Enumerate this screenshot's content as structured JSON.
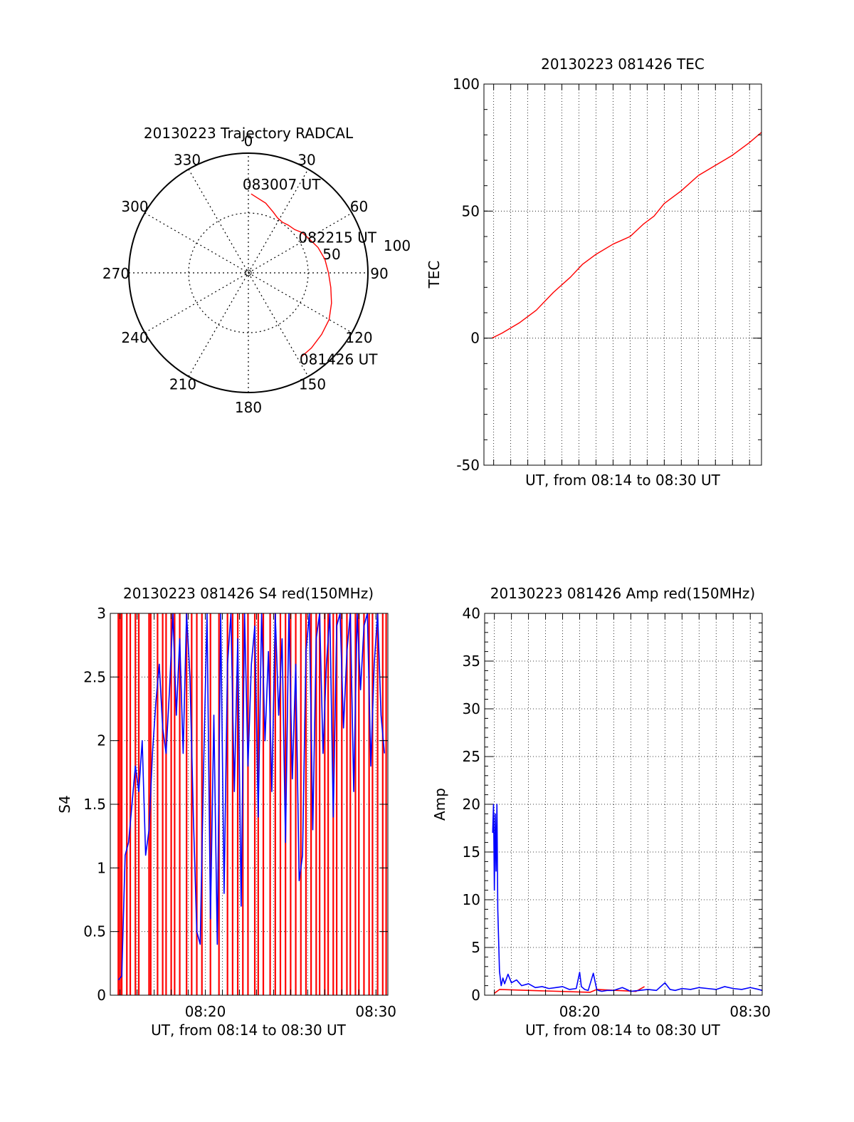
{
  "colors": {
    "red": "#ff0000",
    "blue": "#0000ff",
    "black": "#000000"
  },
  "chart_data": [
    {
      "id": "trajectory",
      "type": "polar",
      "title": "20130223 Trajectory RADCAL",
      "angle_labels": [
        "0",
        "30",
        "60",
        "90",
        "120",
        "150",
        "180",
        "210",
        "240",
        "270",
        "300",
        "330"
      ],
      "radius_labels": [
        "50",
        "100"
      ],
      "rlim": [
        0,
        100
      ],
      "grid": true,
      "track": {
        "azimuth": [
          2,
          7,
          14,
          22,
          28,
          34,
          40,
          47,
          53,
          60,
          70,
          80,
          90,
          100,
          110,
          120,
          130,
          140,
          148
        ],
        "radius": [
          66,
          63,
          60,
          55,
          52,
          51,
          52,
          53,
          56,
          58,
          62,
          65,
          67,
          70,
          74,
          78,
          80,
          82,
          83
        ]
      },
      "annotations": [
        {
          "text": "083007 UT",
          "at": "track start"
        },
        {
          "text": "082215 UT",
          "at": "track midpoint"
        },
        {
          "text": "081426 UT",
          "at": "track end"
        }
      ]
    },
    {
      "id": "tec",
      "type": "line",
      "title": "20130223 081426 TEC",
      "xlabel": "UT, from 08:14 to 08:30 UT",
      "ylabel": "TEC",
      "xlim": [
        14.43,
        30.7
      ],
      "ylim": [
        -50,
        100
      ],
      "yticks": [
        "-50",
        "0",
        "50",
        "100"
      ],
      "xticks": [],
      "grid": true,
      "series": [
        {
          "color": "red",
          "x": [
            14.9,
            15.5,
            16.5,
            17.5,
            18.5,
            19.5,
            20.2,
            21.0,
            22.0,
            23.0,
            23.8,
            24.4,
            25.0,
            26.0,
            27.0,
            28.0,
            29.0,
            30.0,
            30.7
          ],
          "y": [
            0,
            2,
            6,
            11,
            18,
            24,
            29,
            33,
            37,
            40,
            45,
            48,
            53,
            58,
            64,
            68,
            72,
            77,
            81
          ]
        }
      ]
    },
    {
      "id": "s4",
      "type": "line",
      "title": "20130223 081426 S4 red(150MHz)",
      "xlabel": "UT, from 08:14 to 08:30 UT",
      "ylabel": "S4",
      "xlim": [
        14.43,
        30.7
      ],
      "ylim": [
        0,
        3
      ],
      "yticks": [
        "0",
        "0.5",
        "1",
        "1.5",
        "2",
        "2.5",
        "3"
      ],
      "xticks": [
        {
          "label": "08:20",
          "value": 20
        },
        {
          "label": "08:30",
          "value": 30
        }
      ],
      "grid": true,
      "series": [
        {
          "color": "red",
          "x": [
            14.9,
            15.0,
            15.1,
            15.4,
            15.6,
            15.9,
            16.1,
            16.7,
            16.8,
            17.2,
            17.5,
            17.7,
            18.0,
            18.2,
            18.5,
            18.9,
            19.2,
            19.5,
            19.8,
            20.3,
            20.8,
            21.3,
            21.6,
            21.9,
            22.2,
            22.5,
            22.9,
            23.1,
            23.4,
            23.8,
            24.1,
            24.4,
            24.7,
            25.0,
            25.3,
            25.6,
            25.9,
            26.2,
            26.5,
            26.7,
            27.0,
            27.2,
            27.5,
            27.7,
            28.0,
            28.3,
            28.5,
            28.8,
            29.0,
            29.3,
            29.6,
            29.8,
            30.1,
            30.4,
            30.6
          ],
          "y": [
            3,
            3,
            3,
            3,
            3,
            3,
            3,
            3,
            3,
            3,
            3,
            3,
            3,
            3,
            3,
            3,
            3,
            3,
            3,
            3,
            3,
            3,
            3,
            3,
            3,
            3,
            3,
            3,
            3,
            3,
            3,
            3,
            3,
            3,
            3,
            3,
            3,
            3,
            3,
            3,
            3,
            3,
            3,
            3,
            3,
            3,
            3,
            3,
            3,
            3,
            3,
            3,
            3,
            3,
            3
          ]
        },
        {
          "color": "blue",
          "x": [
            14.9,
            15.1,
            15.3,
            15.5,
            15.7,
            15.9,
            16.1,
            16.3,
            16.5,
            16.7,
            16.9,
            17.1,
            17.3,
            17.5,
            17.7,
            17.9,
            18.1,
            18.3,
            18.5,
            18.7,
            18.9,
            19.1,
            19.3,
            19.5,
            19.7,
            19.9,
            20.1,
            20.3,
            20.5,
            20.7,
            20.9,
            21.1,
            21.3,
            21.5,
            21.7,
            21.9,
            22.1,
            22.3,
            22.5,
            22.7,
            22.9,
            23.1,
            23.3,
            23.5,
            23.7,
            23.9,
            24.1,
            24.3,
            24.5,
            24.7,
            24.9,
            25.1,
            25.3,
            25.5,
            25.7,
            25.9,
            26.1,
            26.3,
            26.5,
            26.7,
            26.9,
            27.1,
            27.3,
            27.5,
            27.7,
            27.9,
            28.1,
            28.3,
            28.5,
            28.7,
            28.9,
            29.1,
            29.3,
            29.5,
            29.7,
            29.9,
            30.1,
            30.3,
            30.5
          ],
          "y": [
            0.12,
            0.15,
            1.1,
            1.2,
            1.5,
            1.8,
            1.6,
            2.0,
            1.1,
            1.3,
            1.9,
            2.3,
            2.6,
            2.1,
            1.9,
            2.4,
            3.0,
            2.2,
            2.8,
            1.9,
            3.0,
            2.5,
            1.4,
            0.5,
            0.4,
            1.8,
            3.0,
            0.6,
            2.2,
            0.4,
            3.0,
            0.8,
            2.6,
            3.0,
            1.6,
            2.8,
            0.7,
            3.0,
            1.8,
            2.6,
            2.9,
            1.4,
            3.0,
            2.0,
            2.7,
            1.6,
            3.0,
            2.2,
            2.8,
            1.2,
            3.0,
            1.7,
            2.6,
            0.9,
            1.1,
            2.7,
            3.0,
            1.3,
            2.8,
            3.0,
            1.9,
            2.6,
            3.0,
            1.4,
            2.9,
            3.0,
            2.1,
            2.7,
            3.0,
            1.6,
            3.0,
            2.4,
            2.9,
            3.0,
            1.8,
            2.6,
            3.0,
            2.2,
            1.9
          ]
        }
      ]
    },
    {
      "id": "amp",
      "type": "line",
      "title": "20130223 081426 Amp red(150MHz)",
      "xlabel": "UT, from 08:14 to 08:30 UT",
      "ylabel": "Amp",
      "xlim": [
        14.43,
        30.7
      ],
      "ylim": [
        0,
        40
      ],
      "yticks": [
        "0",
        "5",
        "10",
        "15",
        "20",
        "25",
        "30",
        "35",
        "40"
      ],
      "xticks": [
        {
          "label": "08:20",
          "value": 20
        },
        {
          "label": "08:30",
          "value": 30
        }
      ],
      "grid": true,
      "series": [
        {
          "color": "red",
          "x": [
            15.0,
            15.3,
            20.6,
            21.0,
            23.3,
            23.8
          ],
          "y": [
            0.2,
            0.6,
            0.3,
            0.6,
            0.4,
            0.9
          ]
        },
        {
          "color": "blue",
          "x": [
            14.9,
            14.95,
            15.0,
            15.05,
            15.1,
            15.15,
            15.2,
            15.3,
            15.4,
            15.5,
            15.6,
            15.8,
            16.0,
            16.3,
            16.6,
            17.0,
            17.4,
            17.8,
            18.2,
            18.6,
            19.0,
            19.4,
            19.8,
            20.0,
            20.1,
            20.3,
            20.5,
            20.8,
            21.0,
            21.1,
            21.3,
            21.6,
            22.0,
            22.5,
            23.0,
            23.5,
            24.0,
            24.5,
            25.0,
            25.3,
            25.6,
            26.0,
            26.5,
            27.0,
            27.5,
            28.0,
            28.5,
            29.0,
            29.5,
            30.0,
            30.5,
            30.7
          ],
          "y": [
            17,
            20,
            11,
            19,
            13,
            20,
            9,
            2.5,
            1.0,
            1.8,
            1.2,
            2.2,
            1.3,
            1.6,
            1.0,
            1.2,
            0.8,
            0.9,
            0.7,
            0.8,
            0.9,
            0.6,
            0.7,
            2.4,
            0.9,
            0.6,
            0.5,
            2.3,
            0.6,
            0.5,
            0.4,
            0.5,
            0.5,
            0.8,
            0.4,
            0.5,
            0.6,
            0.5,
            1.3,
            0.6,
            0.5,
            0.7,
            0.6,
            0.8,
            0.7,
            0.6,
            0.9,
            0.7,
            0.6,
            0.8,
            0.6,
            0.5
          ]
        }
      ]
    }
  ]
}
